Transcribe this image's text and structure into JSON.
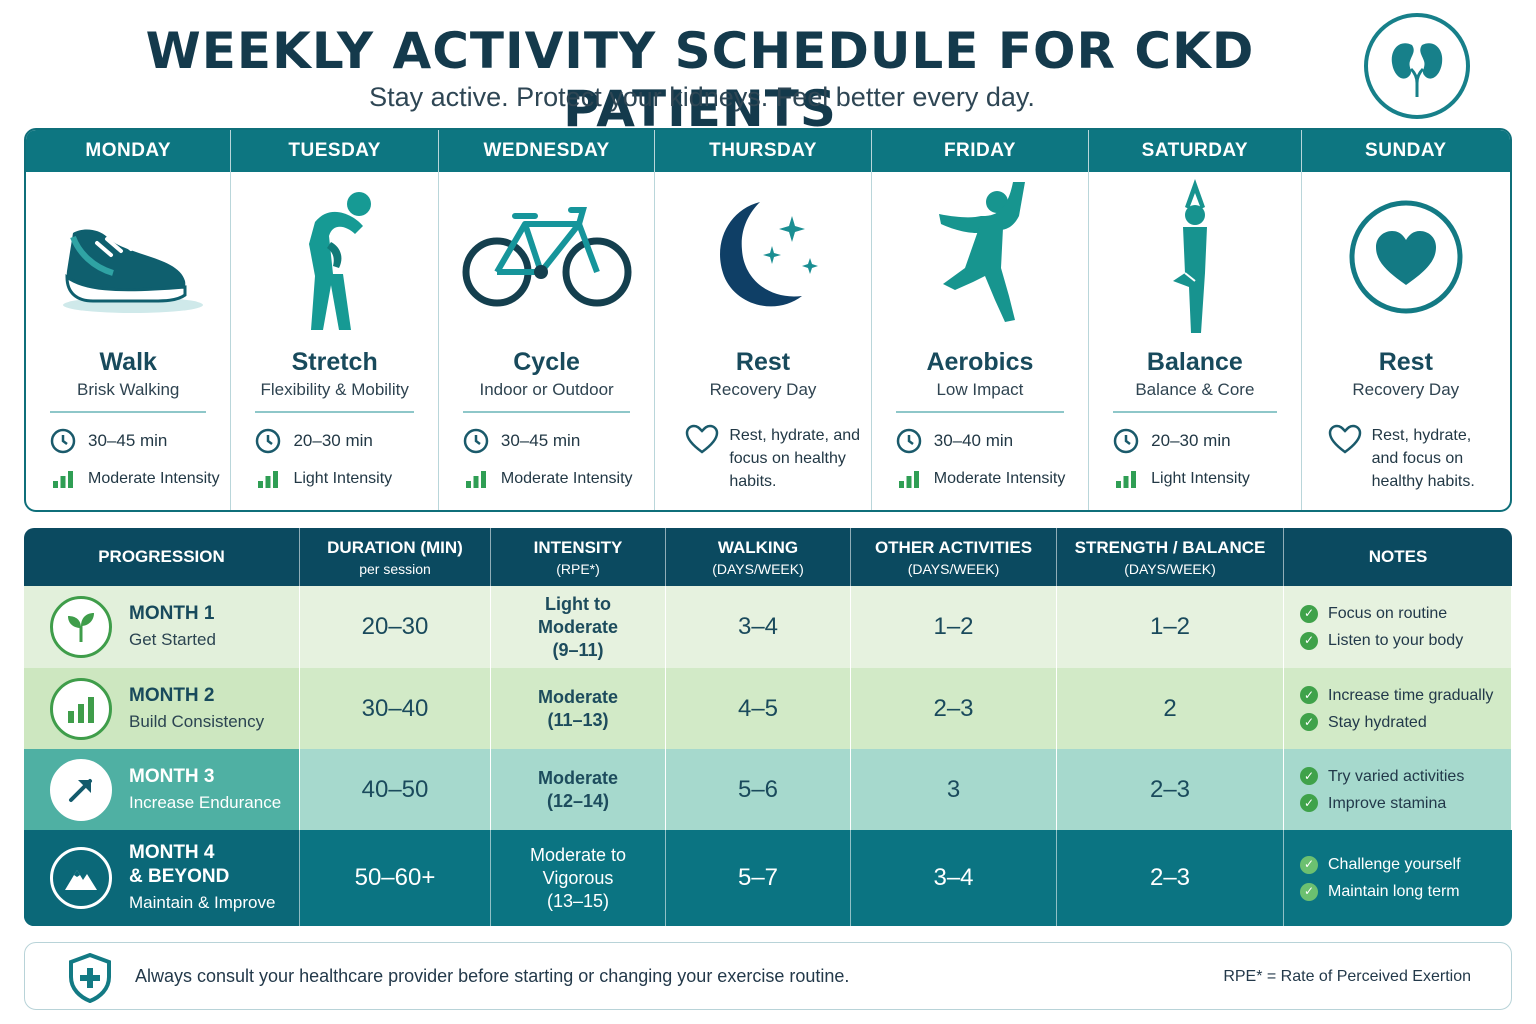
{
  "header": {
    "title": "WEEKLY ACTIVITY SCHEDULE FOR CKD PATIENTS",
    "subtitle": "Stay active. Protect your kidneys. Feel better every day.",
    "logo_icon": "kidneys-icon"
  },
  "week": [
    {
      "day": "MONDAY",
      "activity": "Walk",
      "subtitle": "Brisk Walking",
      "duration": "30–45 min",
      "intensity": "Moderate Intensity",
      "icon": "sneaker-icon"
    },
    {
      "day": "TUESDAY",
      "activity": "Stretch",
      "subtitle": "Flexibility & Mobility",
      "duration": "20–30 min",
      "intensity": "Light Intensity",
      "icon": "stretching-person-icon"
    },
    {
      "day": "WEDNESDAY",
      "activity": "Cycle",
      "subtitle": "Indoor or Outdoor",
      "duration": "30–45 min",
      "intensity": "Moderate Intensity",
      "icon": "bicycle-icon"
    },
    {
      "day": "THURSDAY",
      "activity": "Rest",
      "subtitle": "Recovery Day",
      "note": "Rest, hydrate, and focus on healthy habits.",
      "icon": "moon-stars-icon"
    },
    {
      "day": "FRIDAY",
      "activity": "Aerobics",
      "subtitle": "Low Impact",
      "duration": "30–40 min",
      "intensity": "Moderate Intensity",
      "icon": "jumping-person-icon"
    },
    {
      "day": "SATURDAY",
      "activity": "Balance",
      "subtitle": "Balance & Core",
      "duration": "20–30 min",
      "intensity": "Light Intensity",
      "icon": "yoga-tree-pose-icon"
    },
    {
      "day": "SUNDAY",
      "activity": "Rest",
      "subtitle": "Recovery Day",
      "note": "Rest, hydrate, and focus on healthy habits.",
      "icon": "heart-circle-icon"
    }
  ],
  "progression": {
    "headers": [
      {
        "label": "PROGRESSION",
        "sub": ""
      },
      {
        "label": "DURATION (MIN)",
        "sub": "per session"
      },
      {
        "label": "INTENSITY",
        "sub": "(RPE*)"
      },
      {
        "label": "WALKING",
        "sub": "(DAYS/WEEK)"
      },
      {
        "label": "OTHER ACTIVITIES",
        "sub": "(DAYS/WEEK)"
      },
      {
        "label": "STRENGTH / BALANCE",
        "sub": "(DAYS/WEEK)"
      },
      {
        "label": "NOTES",
        "sub": ""
      }
    ],
    "rows": [
      {
        "month": "MONTH 1",
        "month2": "",
        "phase": "Get Started",
        "duration": "20–30",
        "intensity": [
          "Light to",
          "Moderate",
          "(9–11)"
        ],
        "walking": "3–4",
        "other": "1–2",
        "strength": "1–2",
        "notes": [
          "Focus on routine",
          "Listen to your body"
        ],
        "icon": "sprout-icon"
      },
      {
        "month": "MONTH 2",
        "month2": "",
        "phase": "Build Consistency",
        "duration": "30–40",
        "intensity": [
          "Moderate",
          "(11–13)"
        ],
        "walking": "4–5",
        "other": "2–3",
        "strength": "2",
        "notes": [
          "Increase time gradually",
          "Stay hydrated"
        ],
        "icon": "bar-chart-icon"
      },
      {
        "month": "MONTH 3",
        "month2": "",
        "phase": "Increase Endurance",
        "duration": "40–50",
        "intensity": [
          "Moderate",
          "(12–14)"
        ],
        "walking": "5–6",
        "other": "3",
        "strength": "2–3",
        "notes": [
          "Try varied activities",
          "Improve stamina"
        ],
        "icon": "arrow-up-right-icon"
      },
      {
        "month": "MONTH 4",
        "month2": "& BEYOND",
        "phase": "Maintain & Improve",
        "duration": "50–60+",
        "intensity": [
          "Moderate to",
          "Vigorous",
          "(13–15)"
        ],
        "walking": "5–7",
        "other": "3–4",
        "strength": "2–3",
        "notes": [
          "Challenge yourself",
          "Maintain long term"
        ],
        "icon": "mountain-icon"
      }
    ]
  },
  "footer": {
    "message": "Always consult your healthcare provider before starting or changing your exercise routine.",
    "rpe_note": "RPE* = Rate of Perceived Exertion",
    "icon": "medical-shield-icon"
  },
  "colors": {
    "primary": "#0d7681",
    "dark": "#0b4a60",
    "accent_green": "#3fa24a",
    "title": "#143a4c"
  }
}
